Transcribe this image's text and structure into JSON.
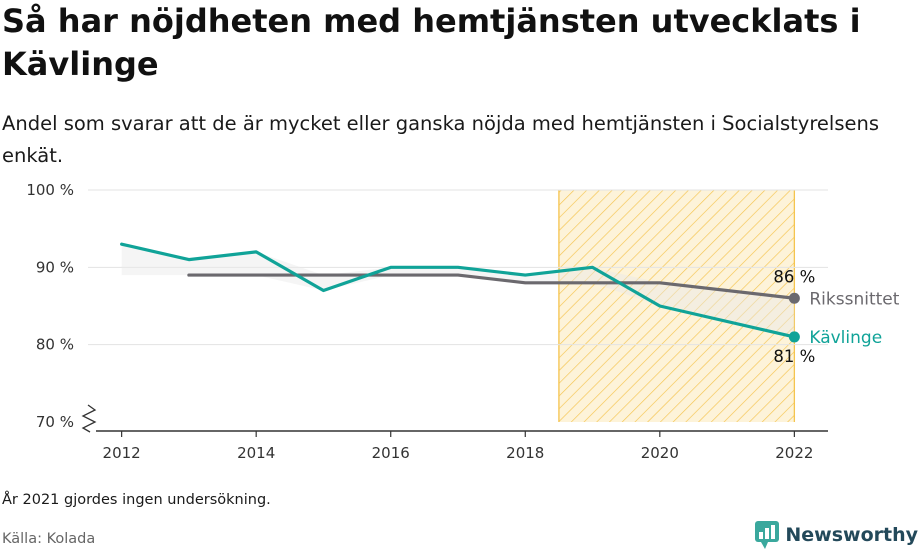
{
  "header": {
    "title": "Så har nöjdheten med hemtjänsten utvecklats i Kävlinge",
    "subtitle": "Andel som svarar att de är mycket eller ganska nöjda med hemtjänsten i Socialstyrelsens enkät."
  },
  "footer": {
    "note": "År 2021 gjordes ingen undersökning.",
    "source": "Källa: Kolada",
    "brand": "Newsworthy"
  },
  "chart_data": {
    "type": "line",
    "x": [
      2012,
      2013,
      2014,
      2015,
      2016,
      2017,
      2018,
      2019,
      2020,
      2022
    ],
    "xticks": [
      2012,
      2014,
      2016,
      2018,
      2020,
      2022
    ],
    "xlim": [
      2011.5,
      2022.5
    ],
    "ylim": [
      70,
      100
    ],
    "yticks": [
      70,
      80,
      90,
      100
    ],
    "ytick_labels": [
      "70 %",
      "80 %",
      "90 %",
      "100 %"
    ],
    "grid": true,
    "highlight_range": [
      2018.5,
      2022
    ],
    "series": [
      {
        "name": "Rikssnittet",
        "color": "#6b696e",
        "values": [
          null,
          89,
          89,
          89,
          89,
          89,
          88,
          88,
          88,
          86
        ],
        "end_label": "86 %"
      },
      {
        "name": "Kävlinge",
        "color": "#10a398",
        "values": [
          93,
          91,
          92,
          87,
          90,
          90,
          89,
          90,
          85,
          81
        ],
        "end_label": "81 %"
      }
    ],
    "colors": {
      "grid": "#e3e3e3",
      "axis": "#333333",
      "highlight_stroke": "#f5c44e",
      "highlight_fill": "#fdf3d9",
      "area_fill": "#e9e9e9"
    }
  }
}
